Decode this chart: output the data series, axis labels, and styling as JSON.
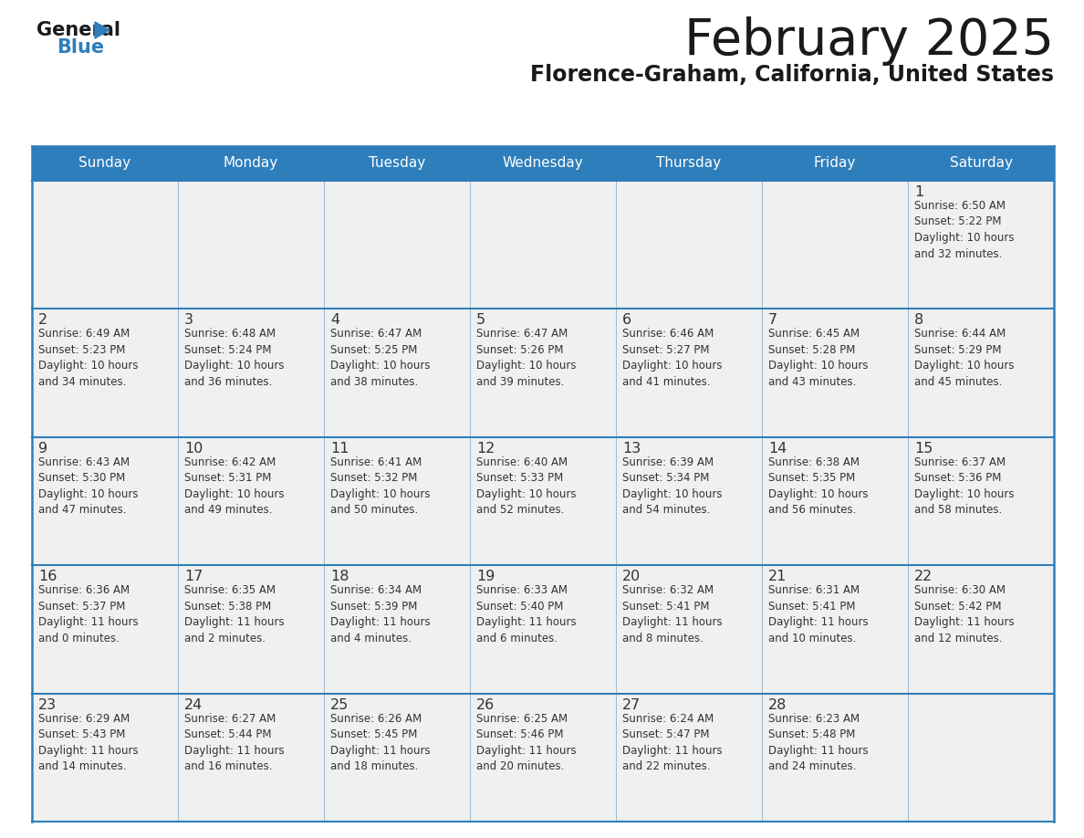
{
  "title": "February 2025",
  "subtitle": "Florence-Graham, California, United States",
  "header_bg": "#2e7ebb",
  "header_text": "#ffffff",
  "cell_bg": "#f0f0f0",
  "day_names": [
    "Sunday",
    "Monday",
    "Tuesday",
    "Wednesday",
    "Thursday",
    "Friday",
    "Saturday"
  ],
  "calendar": [
    [
      {
        "day": null,
        "info": ""
      },
      {
        "day": null,
        "info": ""
      },
      {
        "day": null,
        "info": ""
      },
      {
        "day": null,
        "info": ""
      },
      {
        "day": null,
        "info": ""
      },
      {
        "day": null,
        "info": ""
      },
      {
        "day": 1,
        "info": "Sunrise: 6:50 AM\nSunset: 5:22 PM\nDaylight: 10 hours\nand 32 minutes."
      }
    ],
    [
      {
        "day": 2,
        "info": "Sunrise: 6:49 AM\nSunset: 5:23 PM\nDaylight: 10 hours\nand 34 minutes."
      },
      {
        "day": 3,
        "info": "Sunrise: 6:48 AM\nSunset: 5:24 PM\nDaylight: 10 hours\nand 36 minutes."
      },
      {
        "day": 4,
        "info": "Sunrise: 6:47 AM\nSunset: 5:25 PM\nDaylight: 10 hours\nand 38 minutes."
      },
      {
        "day": 5,
        "info": "Sunrise: 6:47 AM\nSunset: 5:26 PM\nDaylight: 10 hours\nand 39 minutes."
      },
      {
        "day": 6,
        "info": "Sunrise: 6:46 AM\nSunset: 5:27 PM\nDaylight: 10 hours\nand 41 minutes."
      },
      {
        "day": 7,
        "info": "Sunrise: 6:45 AM\nSunset: 5:28 PM\nDaylight: 10 hours\nand 43 minutes."
      },
      {
        "day": 8,
        "info": "Sunrise: 6:44 AM\nSunset: 5:29 PM\nDaylight: 10 hours\nand 45 minutes."
      }
    ],
    [
      {
        "day": 9,
        "info": "Sunrise: 6:43 AM\nSunset: 5:30 PM\nDaylight: 10 hours\nand 47 minutes."
      },
      {
        "day": 10,
        "info": "Sunrise: 6:42 AM\nSunset: 5:31 PM\nDaylight: 10 hours\nand 49 minutes."
      },
      {
        "day": 11,
        "info": "Sunrise: 6:41 AM\nSunset: 5:32 PM\nDaylight: 10 hours\nand 50 minutes."
      },
      {
        "day": 12,
        "info": "Sunrise: 6:40 AM\nSunset: 5:33 PM\nDaylight: 10 hours\nand 52 minutes."
      },
      {
        "day": 13,
        "info": "Sunrise: 6:39 AM\nSunset: 5:34 PM\nDaylight: 10 hours\nand 54 minutes."
      },
      {
        "day": 14,
        "info": "Sunrise: 6:38 AM\nSunset: 5:35 PM\nDaylight: 10 hours\nand 56 minutes."
      },
      {
        "day": 15,
        "info": "Sunrise: 6:37 AM\nSunset: 5:36 PM\nDaylight: 10 hours\nand 58 minutes."
      }
    ],
    [
      {
        "day": 16,
        "info": "Sunrise: 6:36 AM\nSunset: 5:37 PM\nDaylight: 11 hours\nand 0 minutes."
      },
      {
        "day": 17,
        "info": "Sunrise: 6:35 AM\nSunset: 5:38 PM\nDaylight: 11 hours\nand 2 minutes."
      },
      {
        "day": 18,
        "info": "Sunrise: 6:34 AM\nSunset: 5:39 PM\nDaylight: 11 hours\nand 4 minutes."
      },
      {
        "day": 19,
        "info": "Sunrise: 6:33 AM\nSunset: 5:40 PM\nDaylight: 11 hours\nand 6 minutes."
      },
      {
        "day": 20,
        "info": "Sunrise: 6:32 AM\nSunset: 5:41 PM\nDaylight: 11 hours\nand 8 minutes."
      },
      {
        "day": 21,
        "info": "Sunrise: 6:31 AM\nSunset: 5:41 PM\nDaylight: 11 hours\nand 10 minutes."
      },
      {
        "day": 22,
        "info": "Sunrise: 6:30 AM\nSunset: 5:42 PM\nDaylight: 11 hours\nand 12 minutes."
      }
    ],
    [
      {
        "day": 23,
        "info": "Sunrise: 6:29 AM\nSunset: 5:43 PM\nDaylight: 11 hours\nand 14 minutes."
      },
      {
        "day": 24,
        "info": "Sunrise: 6:27 AM\nSunset: 5:44 PM\nDaylight: 11 hours\nand 16 minutes."
      },
      {
        "day": 25,
        "info": "Sunrise: 6:26 AM\nSunset: 5:45 PM\nDaylight: 11 hours\nand 18 minutes."
      },
      {
        "day": 26,
        "info": "Sunrise: 6:25 AM\nSunset: 5:46 PM\nDaylight: 11 hours\nand 20 minutes."
      },
      {
        "day": 27,
        "info": "Sunrise: 6:24 AM\nSunset: 5:47 PM\nDaylight: 11 hours\nand 22 minutes."
      },
      {
        "day": 28,
        "info": "Sunrise: 6:23 AM\nSunset: 5:48 PM\nDaylight: 11 hours\nand 24 minutes."
      },
      {
        "day": null,
        "info": ""
      }
    ]
  ],
  "logo_color_general": "#1a1a1a",
  "logo_color_blue": "#2e7ebb",
  "logo_triangle_color": "#2e7ebb",
  "title_color": "#1a1a1a",
  "subtitle_color": "#1a1a1a",
  "cell_number_color": "#333333",
  "cell_info_color": "#333333",
  "border_color": "#2e7ebb",
  "divider_color": "#2e7ebb",
  "col_divider_color": "#a0b8d0"
}
